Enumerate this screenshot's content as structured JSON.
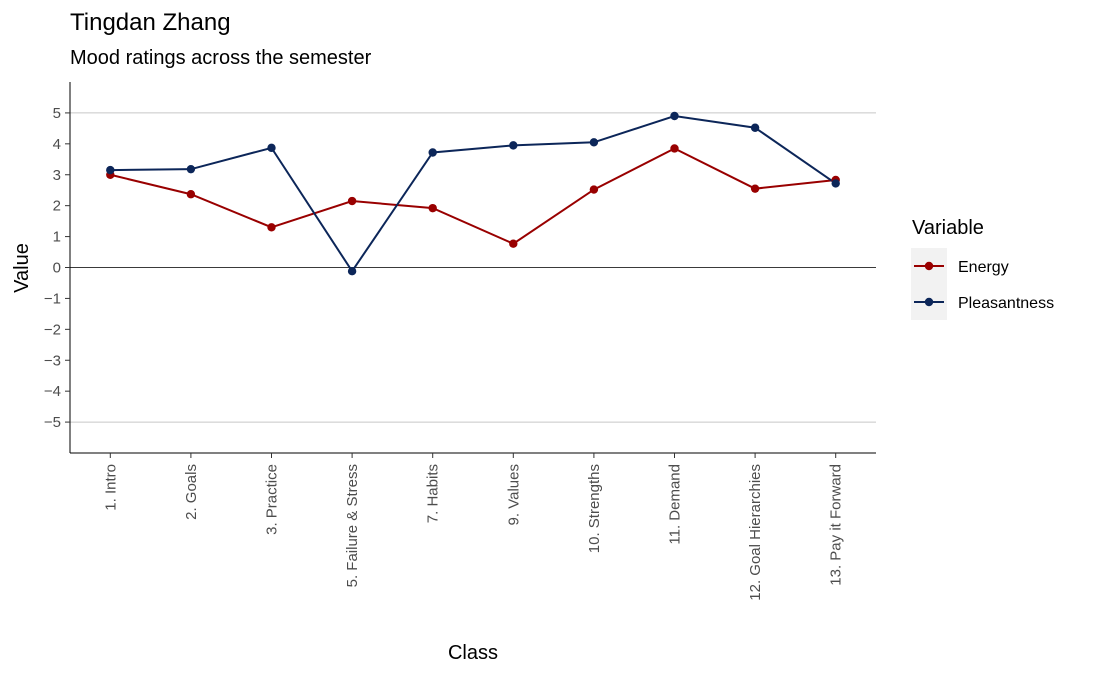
{
  "chart_data": {
    "type": "line",
    "title": "Tingdan Zhang",
    "subtitle": "Mood ratings across the semester",
    "xlabel": "Class",
    "ylabel": "Value",
    "categories": [
      "1. Intro",
      "2. Goals",
      "3. Practice",
      "5. Failure & Stress",
      "7. Habits",
      "9. Values",
      "10. Strengths",
      "11. Demand",
      "12. Goal Hierarchies",
      "13. Pay it Forward"
    ],
    "ylim": [
      -6,
      6
    ],
    "yticks": [
      -5,
      -4,
      -3,
      -2,
      -1,
      0,
      1,
      2,
      3,
      4,
      5
    ],
    "gridlines_y": [
      -5,
      5
    ],
    "zero_line": true,
    "legend_title": "Variable",
    "legend_position": "right",
    "series": [
      {
        "name": "Energy",
        "color": "#990000",
        "values": [
          3.0,
          2.37,
          1.3,
          2.15,
          1.92,
          0.77,
          2.52,
          3.85,
          2.55,
          2.83
        ]
      },
      {
        "name": "Pleasantness",
        "color": "#0c2659",
        "values": [
          3.15,
          3.18,
          3.87,
          -0.12,
          3.72,
          3.95,
          4.05,
          4.9,
          4.52,
          2.72
        ]
      }
    ]
  }
}
